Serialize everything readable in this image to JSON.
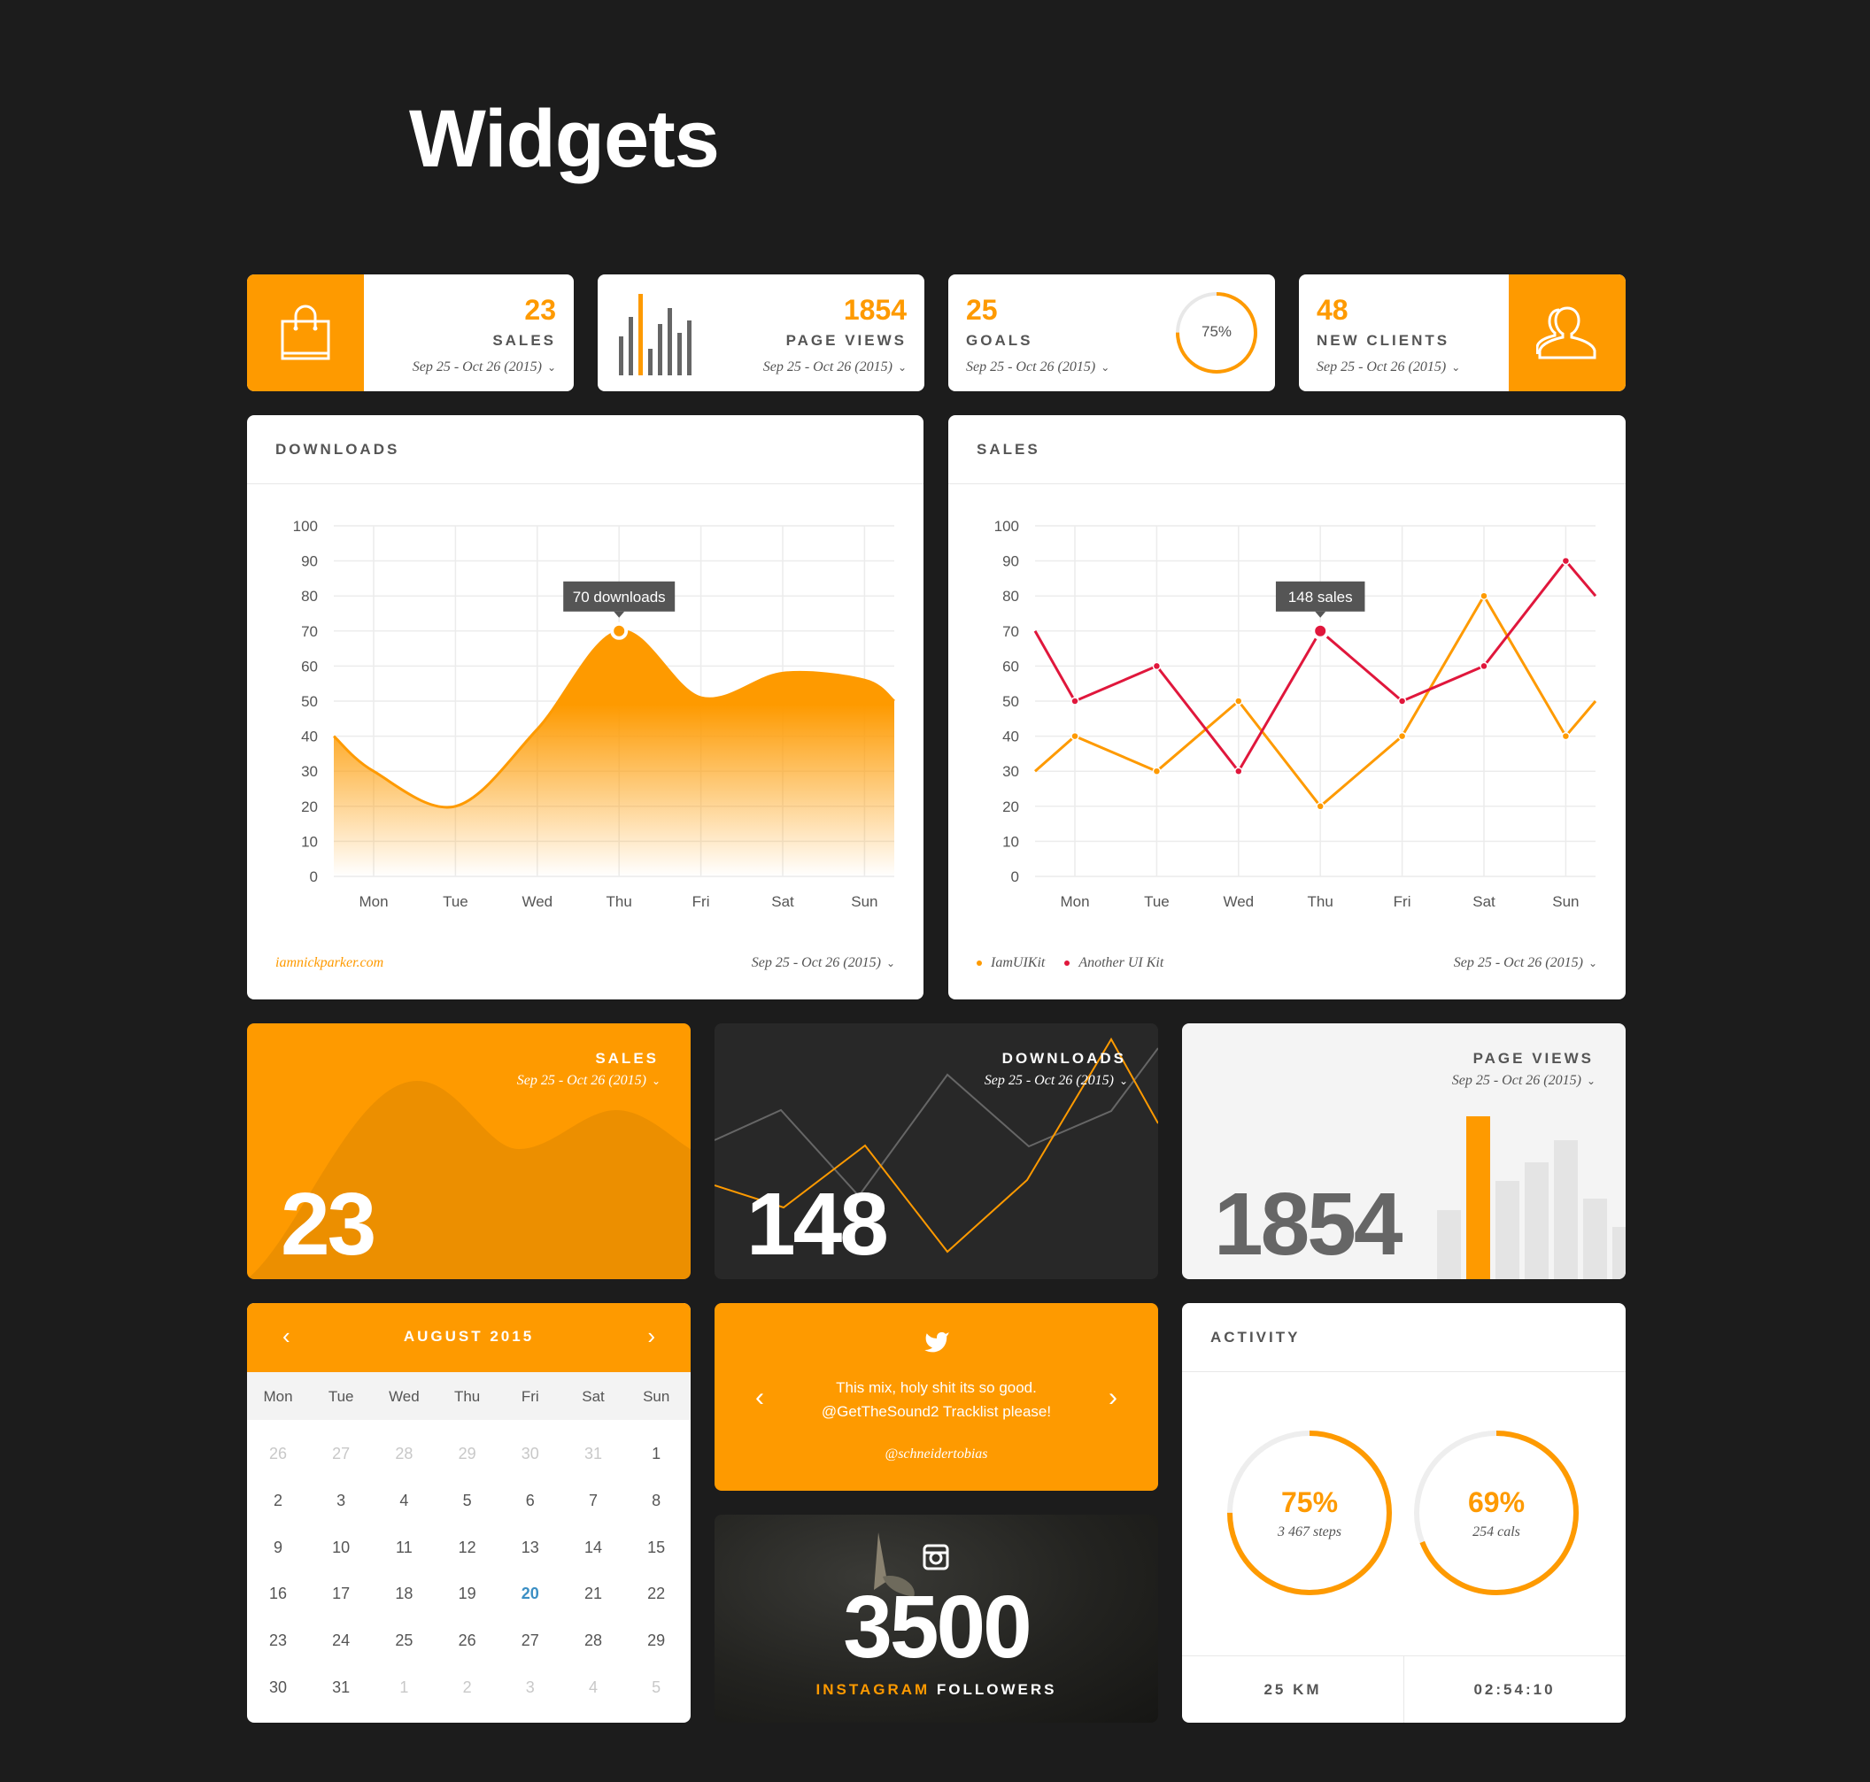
{
  "page_title": "Widgets",
  "colors": {
    "accent": "#fe9a00",
    "red": "#e0173c",
    "background": "#1c1c1c",
    "dark_card": "#282828"
  },
  "stat_cards": [
    {
      "value": "23",
      "label": "SALES",
      "date": "Sep 25 - Oct 26 (2015)",
      "icon": "shopping-bag-icon"
    },
    {
      "value": "1854",
      "label": "PAGE VIEWS",
      "date": "Sep 25 - Oct 26 (2015)",
      "icon": "bar-chart-icon"
    },
    {
      "value": "25",
      "label": "GOALS",
      "date": "Sep 25 - Oct 26 (2015)",
      "progress_label": "75%",
      "progress": 0.75
    },
    {
      "value": "48",
      "label": "NEW CLIENTS",
      "date": "Sep 25 - Oct 26 (2015)",
      "icon": "user-icon"
    }
  ],
  "downloads_card": {
    "title": "DOWNLOADS",
    "footer_link": "iamnickparker.com",
    "date": "Sep 25 - Oct 26 (2015)",
    "tooltip": "70 downloads"
  },
  "sales_card": {
    "title": "SALES",
    "date": "Sep 25 - Oct 26 (2015)",
    "tooltip": "148 sales"
  },
  "chart_data": [
    {
      "type": "area",
      "categories": [
        "Mon",
        "Tue",
        "Wed",
        "Thu",
        "Fri",
        "Sat",
        "Sun"
      ],
      "series": [
        {
          "values": [
            30,
            20,
            42,
            70,
            51,
            58,
            56
          ],
          "leading_value": 40,
          "trailing_value": 50
        }
      ],
      "yticks": [
        "0",
        "10",
        "20",
        "30",
        "40",
        "50",
        "60",
        "70",
        "80",
        "90",
        "100"
      ],
      "ylim": [
        0,
        100
      ],
      "grid": true,
      "smooth": true,
      "highlight_index": 3
    },
    {
      "type": "line",
      "categories": [
        "Mon",
        "Tue",
        "Wed",
        "Thu",
        "Fri",
        "Sat",
        "Sun"
      ],
      "series": [
        {
          "name": "IamUIKit",
          "color": "#fe9a00",
          "values": [
            40,
            30,
            50,
            20,
            40,
            80,
            40
          ],
          "leading_value": 30,
          "trailing_value": 50
        },
        {
          "name": "Another UI Kit",
          "color": "#e0173c",
          "values": [
            50,
            60,
            30,
            70,
            50,
            60,
            90
          ],
          "leading_value": 70,
          "trailing_value": 80
        }
      ],
      "yticks": [
        "0",
        "10",
        "20",
        "30",
        "40",
        "50",
        "60",
        "70",
        "80",
        "90",
        "100"
      ],
      "ylim": [
        0,
        100
      ],
      "grid": true,
      "legend": "bottom-left",
      "highlight_series": 1,
      "highlight_index": 3
    }
  ],
  "mini_sales": {
    "title": "SALES",
    "date": "Sep 25 - Oct 26 (2015)",
    "value": "23"
  },
  "mini_downloads": {
    "title": "DOWNLOADS",
    "date": "Sep 25 - Oct 26 (2015)",
    "value": "148"
  },
  "mini_pageviews": {
    "title": "PAGE VIEWS",
    "date": "Sep 25 - Oct 26 (2015)",
    "value": "1854",
    "bars": [
      78,
      184,
      111,
      132,
      157,
      91,
      59
    ],
    "highlight_bar": 1
  },
  "calendar": {
    "month": "AUGUST 2015",
    "day_names": [
      "Mon",
      "Tue",
      "Wed",
      "Thu",
      "Fri",
      "Sat",
      "Sun"
    ],
    "weeks": [
      [
        {
          "d": "26",
          "s": "other"
        },
        {
          "d": "27",
          "s": "other"
        },
        {
          "d": "28",
          "s": "other"
        },
        {
          "d": "29",
          "s": "other"
        },
        {
          "d": "30",
          "s": "other"
        },
        {
          "d": "31",
          "s": "other"
        },
        {
          "d": "1"
        }
      ],
      [
        {
          "d": "2"
        },
        {
          "d": "3"
        },
        {
          "d": "4"
        },
        {
          "d": "5"
        },
        {
          "d": "6"
        },
        {
          "d": "7"
        },
        {
          "d": "8"
        }
      ],
      [
        {
          "d": "9"
        },
        {
          "d": "10"
        },
        {
          "d": "11"
        },
        {
          "d": "12"
        },
        {
          "d": "13"
        },
        {
          "d": "14"
        },
        {
          "d": "15"
        }
      ],
      [
        {
          "d": "16"
        },
        {
          "d": "17"
        },
        {
          "d": "18"
        },
        {
          "d": "19"
        },
        {
          "d": "20",
          "s": "today"
        },
        {
          "d": "21"
        },
        {
          "d": "22"
        }
      ],
      [
        {
          "d": "23"
        },
        {
          "d": "24"
        },
        {
          "d": "25"
        },
        {
          "d": "26"
        },
        {
          "d": "27"
        },
        {
          "d": "28"
        },
        {
          "d": "29"
        }
      ],
      [
        {
          "d": "30"
        },
        {
          "d": "31"
        },
        {
          "d": "1",
          "s": "other"
        },
        {
          "d": "2",
          "s": "other"
        },
        {
          "d": "3",
          "s": "other"
        },
        {
          "d": "4",
          "s": "other"
        },
        {
          "d": "5",
          "s": "other"
        }
      ]
    ]
  },
  "tweet": {
    "line1": "This mix, holy shit its so good.",
    "line2": "@GetTheSound2 Tracklist please!",
    "author": "@schneidertobias"
  },
  "instagram": {
    "count": "3500",
    "label_accent": "INSTAGRAM",
    "label": "FOLLOWERS"
  },
  "activity": {
    "title": "ACTIVITY",
    "rings": [
      {
        "percent_label": "75%",
        "progress": 0.75,
        "sub": "3 467 steps"
      },
      {
        "percent_label": "69%",
        "progress": 0.69,
        "sub": "254 cals"
      }
    ],
    "distance": "25 KM",
    "time": "02:54:10"
  }
}
